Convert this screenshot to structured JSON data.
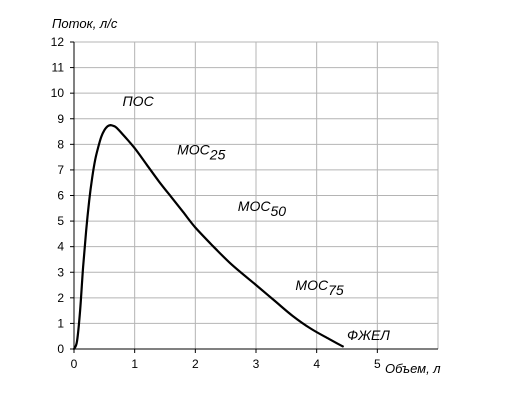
{
  "chart_data": {
    "type": "line",
    "title": "",
    "xlabel": "Объем, л",
    "ylabel": "Поток, л/с",
    "xlim": [
      0,
      6
    ],
    "ylim": [
      0,
      12
    ],
    "x_ticks": [
      0,
      1,
      2,
      3,
      4,
      5
    ],
    "y_ticks": [
      0,
      1,
      2,
      3,
      4,
      5,
      6,
      7,
      8,
      9,
      10,
      11,
      12
    ],
    "grid": true,
    "series": [
      {
        "x": [
          0,
          0.05,
          0.1,
          0.15,
          0.2,
          0.25,
          0.3,
          0.35,
          0.4,
          0.45,
          0.5,
          0.55,
          0.6,
          0.65,
          0.7,
          0.8,
          1.0,
          1.2,
          1.4,
          1.6,
          1.8,
          2.0,
          2.3,
          2.6,
          3.0,
          3.3,
          3.6,
          3.9,
          4.2,
          4.43
        ],
        "y": [
          0,
          0.3,
          1.5,
          3.2,
          4.6,
          5.8,
          6.7,
          7.4,
          7.9,
          8.3,
          8.55,
          8.7,
          8.75,
          8.72,
          8.65,
          8.4,
          7.85,
          7.2,
          6.55,
          5.95,
          5.35,
          4.75,
          4.0,
          3.3,
          2.5,
          1.9,
          1.3,
          0.8,
          0.4,
          0.1
        ]
      }
    ],
    "annotations": [
      {
        "name": "pos",
        "text": "ПОС",
        "sub": "",
        "x": 0.8,
        "y": 9.5
      },
      {
        "name": "mos25",
        "text": "МОС",
        "sub": "25",
        "x": 1.7,
        "y": 7.6
      },
      {
        "name": "mos50",
        "text": "МОС",
        "sub": "50",
        "x": 2.7,
        "y": 5.4
      },
      {
        "name": "mos75",
        "text": "МОС",
        "sub": "75",
        "x": 3.65,
        "y": 2.3
      },
      {
        "name": "fvc",
        "text": "ФЖЕЛ",
        "sub": "",
        "x": 4.5,
        "y": 0.35
      }
    ]
  }
}
